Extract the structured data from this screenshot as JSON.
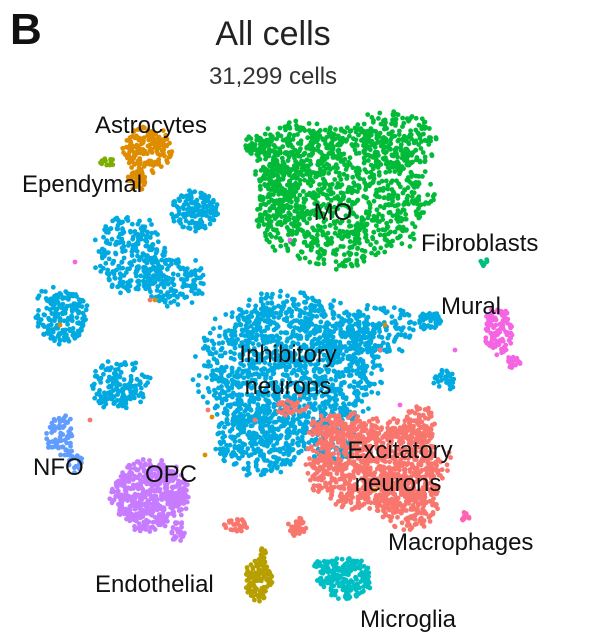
{
  "panel_letter": "B",
  "chart_data": {
    "type": "scatter",
    "title": "All cells",
    "subtitle": "31,299 cells",
    "xlabel": "",
    "ylabel": "",
    "grid": false,
    "legend": "none",
    "clusters": [
      {
        "name": "MO",
        "color": "#00BA38",
        "label_lines": [
          "MO"
        ]
      },
      {
        "name": "Inhibitory neurons",
        "color": "#00A9E0",
        "label_lines": [
          "Inhibitory",
          "neurons"
        ]
      },
      {
        "name": "Excitatory neurons",
        "color": "#F8766D",
        "label_lines": [
          "Excitatory",
          "neurons"
        ]
      },
      {
        "name": "Astrocytes",
        "color": "#DE8C00",
        "label_lines": [
          "Astrocytes"
        ]
      },
      {
        "name": "Ependymal",
        "color": "#7CAE00",
        "label_lines": [
          "Ependymal"
        ]
      },
      {
        "name": "Fibroblasts",
        "color": "#00BF7D",
        "label_lines": [
          "Fibroblasts"
        ]
      },
      {
        "name": "Mural",
        "color": "#F564E3",
        "label_lines": [
          "Mural"
        ]
      },
      {
        "name": "NFO",
        "color": "#619CFF",
        "label_lines": [
          "NFO"
        ]
      },
      {
        "name": "OPC",
        "color": "#C77CFF",
        "label_lines": [
          "OPC"
        ]
      },
      {
        "name": "Macrophages",
        "color": "#FF64B0",
        "label_lines": [
          "Macrophages"
        ]
      },
      {
        "name": "Endothelial",
        "color": "#B79F00",
        "label_lines": [
          "Endothelial"
        ]
      },
      {
        "name": "Microglia",
        "color": "#00BFC4",
        "label_lines": [
          "Microglia"
        ]
      }
    ]
  }
}
